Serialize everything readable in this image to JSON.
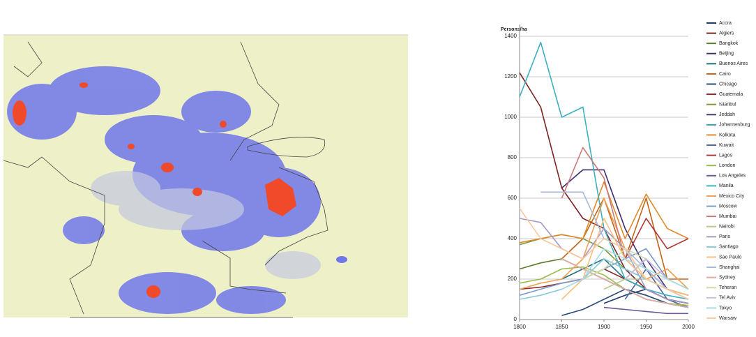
{
  "chart_data": {
    "type": "line",
    "y_label": "Persons/ha",
    "x": [
      1800,
      1825,
      1850,
      1875,
      1900,
      1925,
      1950,
      1975,
      2000
    ],
    "xlim": [
      1800,
      2000
    ],
    "xticks": [
      1800,
      1850,
      1900,
      1950,
      2000
    ],
    "ylim": [
      0,
      1400
    ],
    "yticks": [
      0,
      200,
      400,
      600,
      800,
      1000,
      1200,
      1400
    ],
    "grid": true,
    "legend": "right",
    "series": [
      {
        "name": "Accra",
        "color": "#1f3d6b",
        "values": [
          null,
          null,
          null,
          null,
          80,
          120,
          150,
          100,
          80
        ]
      },
      {
        "name": "Algiers",
        "color": "#7b2424",
        "values": [
          1220,
          1050,
          650,
          500,
          450,
          250,
          150,
          100,
          80
        ]
      },
      {
        "name": "Bangkok",
        "color": "#5e7a2a",
        "values": [
          250,
          280,
          300,
          250,
          200,
          150,
          120,
          80,
          60
        ]
      },
      {
        "name": "Beijing",
        "color": "#3d2d6b",
        "values": [
          null,
          null,
          650,
          740,
          740,
          450,
          250,
          150,
          120
        ]
      },
      {
        "name": "Buenos Aires",
        "color": "#23707f",
        "values": [
          null,
          null,
          200,
          250,
          300,
          200,
          150,
          100,
          80
        ]
      },
      {
        "name": "Cairo",
        "color": "#c0661a",
        "values": [
          null,
          null,
          300,
          400,
          600,
          300,
          600,
          200,
          200
        ]
      },
      {
        "name": "Chicago",
        "color": "#2c4a7a",
        "values": [
          null,
          null,
          20,
          50,
          100,
          150,
          120,
          80,
          60
        ]
      },
      {
        "name": "Guatemala",
        "color": "#8b2a2a",
        "values": [
          150,
          160,
          180,
          200,
          250,
          200,
          150,
          100,
          80
        ]
      },
      {
        "name": "Istanbul",
        "color": "#7a9a3a",
        "values": [
          370,
          400,
          420,
          400,
          350,
          250,
          200,
          150,
          120
        ]
      },
      {
        "name": "Jeddah",
        "color": "#4a3a7a",
        "values": [
          null,
          null,
          null,
          null,
          null,
          200,
          300,
          150,
          100
        ]
      },
      {
        "name": "Johannesburg",
        "color": "#3a9aaa",
        "values": [
          null,
          null,
          null,
          null,
          200,
          150,
          100,
          80,
          60
        ]
      },
      {
        "name": "Kolkota",
        "color": "#e08a2a",
        "values": [
          380,
          400,
          420,
          400,
          680,
          400,
          620,
          450,
          400
        ]
      },
      {
        "name": "Kuwait",
        "color": "#4a6aa0",
        "values": [
          null,
          null,
          null,
          null,
          null,
          100,
          250,
          100,
          60
        ]
      },
      {
        "name": "Lagos",
        "color": "#b03a3a",
        "values": [
          null,
          null,
          null,
          null,
          null,
          300,
          500,
          350,
          400
        ]
      },
      {
        "name": "London",
        "color": "#9aba4a",
        "values": [
          180,
          200,
          250,
          260,
          220,
          150,
          100,
          80,
          70
        ]
      },
      {
        "name": "Los Angeles",
        "color": "#6a5a9a",
        "values": [
          null,
          null,
          null,
          null,
          60,
          50,
          40,
          30,
          30
        ]
      },
      {
        "name": "Manila",
        "color": "#3cb0c0",
        "values": [
          1100,
          1370,
          1000,
          1050,
          450,
          200,
          150,
          120,
          100
        ]
      },
      {
        "name": "Mexico City",
        "color": "#f0a050",
        "values": [
          150,
          180,
          200,
          300,
          600,
          350,
          200,
          250,
          150
        ]
      },
      {
        "name": "Moscow",
        "color": "#7a9ac8",
        "values": [
          120,
          150,
          180,
          200,
          250,
          300,
          350,
          200,
          150
        ]
      },
      {
        "name": "Mumbai",
        "color": "#c87a7a",
        "values": [
          null,
          null,
          600,
          850,
          700,
          300,
          200,
          150,
          100
        ]
      },
      {
        "name": "Nairobi",
        "color": "#b8c888",
        "values": [
          null,
          null,
          null,
          null,
          150,
          200,
          200,
          150,
          100
        ]
      },
      {
        "name": "Paris",
        "color": "#a898c8",
        "values": [
          500,
          480,
          350,
          300,
          450,
          350,
          150,
          100,
          80
        ]
      },
      {
        "name": "Santiago",
        "color": "#88c8d8",
        "values": [
          100,
          120,
          150,
          200,
          300,
          250,
          200,
          150,
          100
        ]
      },
      {
        "name": "Sao Paulo",
        "color": "#f8c080",
        "values": [
          null,
          null,
          100,
          200,
          500,
          300,
          200,
          150,
          120
        ]
      },
      {
        "name": "Shanghai",
        "color": "#a8b8d8",
        "values": [
          null,
          630,
          630,
          630,
          400,
          350,
          250,
          150,
          100
        ]
      },
      {
        "name": "Sydney",
        "color": "#e0a8a8",
        "values": [
          null,
          null,
          300,
          250,
          200,
          150,
          100,
          80,
          60
        ]
      },
      {
        "name": "Teheran",
        "color": "#d0dca8",
        "values": [
          null,
          null,
          null,
          200,
          250,
          350,
          300,
          200,
          150
        ]
      },
      {
        "name": "Tel Aviv",
        "color": "#c8c0e0",
        "values": [
          null,
          null,
          null,
          null,
          null,
          200,
          300,
          200,
          150
        ]
      },
      {
        "name": "Tokyo",
        "color": "#a8dce8",
        "values": [
          null,
          null,
          150,
          200,
          350,
          300,
          250,
          200,
          150
        ]
      },
      {
        "name": "Warsaw",
        "color": "#f8c8a0",
        "values": [
          550,
          400,
          350,
          300,
          400,
          350,
          200,
          150,
          100
        ]
      }
    ]
  }
}
